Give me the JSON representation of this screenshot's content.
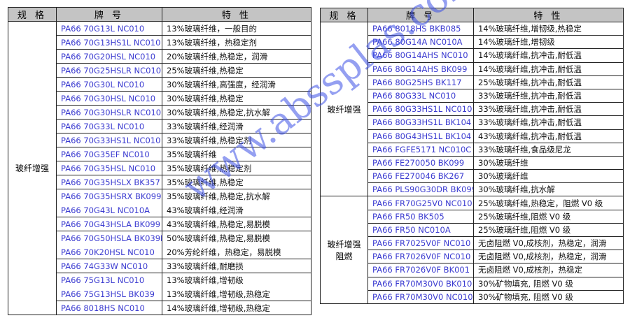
{
  "headers": {
    "spec": "规 格",
    "grade": "牌 号",
    "property": "特 性"
  },
  "watermark": "www.abssplas.com",
  "left_table": {
    "groups": [
      {
        "spec": "玻纤增强",
        "rows": [
          {
            "grade": "PA66 70G13L NC010",
            "property": "13%玻璃纤维，一般目的"
          },
          {
            "grade": "PA66 70G13HS1L NC010",
            "property": "13%玻璃纤维，热稳定剂"
          },
          {
            "grade": "PA66 70G20HSL NC010",
            "property": "20%玻璃纤维,热稳定，润滑"
          },
          {
            "grade": "PA66 70G25HSLR NC010",
            "property": "25%玻璃纤维,热稳定"
          },
          {
            "grade": "PA66 70G30L NC010",
            "property": "30%玻璃纤维,高强度，经润滑"
          },
          {
            "grade": "PA66 70G30HSL NC010",
            "property": "30%玻璃纤维,热稳定"
          },
          {
            "grade": "PA66 70G30HSLR NC010",
            "property": "30%玻璃纤维,热稳定,抗水解"
          },
          {
            "grade": "PA66 70G33L NC010",
            "property": "33%玻璃纤维,经润滑"
          },
          {
            "grade": "PA66 70G33HS1L NC010",
            "property": "33%玻璃纤维,热稳定剂"
          },
          {
            "grade": "PA66 70G35EF NC010",
            "property": "35%玻璃纤维"
          },
          {
            "grade": "PA66 70G35HSL NC010",
            "property": "35%玻璃纤维,热稳定剂"
          },
          {
            "grade": "PA66 70G35HSLX BK357",
            "property": "35%玻璃纤维,热稳定"
          },
          {
            "grade": "PA66 70G35HSRX BK099",
            "property": "35%玻璃纤维,热稳定,抗水解",
            "noborder": true
          },
          {
            "grade": "PA66 70G43L NC010A",
            "property": "43%玻璃纤维,经润滑"
          },
          {
            "grade": "PA66 70G43HSLA BK099",
            "property": "43%玻璃纤维,热稳定,易脱模"
          },
          {
            "grade": "PA66 70G50HSLA BK039B",
            "property": "50%玻璃纤维,热稳定,易脱模",
            "noborder": true
          },
          {
            "grade": "PA66 70K20HSL NC010",
            "property": "20%芳纶纤维，热稳定，易脱模"
          },
          {
            "grade": "PA66 74G33W NC010",
            "property": "33%玻璃纤维,耐磨损"
          },
          {
            "grade": "PA66 75G13L NC010",
            "property": "13%玻璃纤维,增韧级",
            "noborder": true
          },
          {
            "grade": "PA66 75G13HSL BK039",
            "property": "13%玻璃纤维,增韧级,热稳定"
          },
          {
            "grade": "PA66 8018HS NC010",
            "property": "14%玻璃纤维,增韧级,热稳定"
          }
        ]
      }
    ]
  },
  "right_table": {
    "groups": [
      {
        "spec": "玻纤增强",
        "rows": [
          {
            "grade": "PA66 8018HS BKB085",
            "property": "14%玻璃纤维,增韧级,热稳定"
          },
          {
            "grade": "PA66 80G14A NC010A",
            "property": "14%玻璃纤维,增韧级"
          },
          {
            "grade": "PA66 80G14AHS NC010",
            "property": "14%玻璃纤维,抗冲击,耐低温"
          },
          {
            "grade": "PA66 80G14AHS BK099",
            "property": "14%玻璃纤维,抗冲击,耐低温"
          },
          {
            "grade": "PA66 80G25HS BK117",
            "property": "25%玻璃纤维,抗冲击,耐低温"
          },
          {
            "grade": "PA66 80G33L NC010",
            "property": "33%玻璃纤维,抗冲击,耐低温"
          },
          {
            "grade": "PA66 80G33HS1L NC010",
            "property": "33%玻璃纤维,抗冲击,耐低温"
          },
          {
            "grade": "PA66 80G33HS1L BK104",
            "property": "33%玻璃纤维,抗冲击,耐低温"
          },
          {
            "grade": "PA66 80G43HS1L BK104",
            "property": "43%玻璃纤维,抗冲击,耐低温"
          },
          {
            "grade": "PA66 FGFE5171 NC010C",
            "property": "33%玻璃纤维,食品级尼龙"
          },
          {
            "grade": "PA66 FE270050 BK099",
            "property": "30%玻璃纤维"
          },
          {
            "grade": "PA66 FE270046 BK267",
            "property": "30%玻璃纤维"
          },
          {
            "grade": "PA66 PLS90G30DR BK099",
            "property": "30%玻璃纤维,抗水解"
          }
        ]
      },
      {
        "spec": "玻纤增强 阻燃",
        "rows": [
          {
            "grade": "PA66 FR70G25V0 NC010",
            "property": "25%玻璃纤维,热稳定，阻燃 V0 级"
          },
          {
            "grade": "PA66 FR50 BK505",
            "property": "25%玻璃纤维,阻燃 V0 级"
          },
          {
            "grade": "PA66 FR50 NC010A",
            "property": "25%玻璃纤维,阻燃 V0 级"
          },
          {
            "grade": "PA66 FR7025V0F NC010",
            "property": "无卤阻燃 V0,成核剂，热稳定，润滑"
          },
          {
            "grade": "PA66 FR7026V0F NC010",
            "property": "无卤阻燃 V0,成核剂，热稳定，润滑"
          },
          {
            "grade": "PA66 FR7026V0F BK001",
            "property": "无卤阻燃 V0,成核剂，热稳定"
          },
          {
            "grade": "PA66 FR70M30V0 BK010",
            "property": "30%矿物填充, 阻燃 V0 级"
          },
          {
            "grade": "PA66 FR70M30V0 NC010",
            "property": "30%矿物填充, 阻燃 V0 级"
          }
        ]
      }
    ]
  }
}
